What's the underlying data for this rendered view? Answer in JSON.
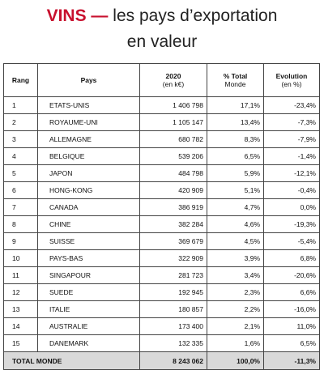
{
  "header": {
    "highlight": "VINS —",
    "title": "les pays d’exportation",
    "title_line2": "en valeur"
  },
  "table": {
    "columns": [
      {
        "label": "Rang",
        "sub": null
      },
      {
        "label": "Pays",
        "sub": null
      },
      {
        "label": "2020",
        "sub": "(en k€)"
      },
      {
        "label": "% Total",
        "sub": "Monde"
      },
      {
        "label": "Evolution",
        "sub": "(en %)"
      }
    ],
    "rows": [
      [
        "1",
        "ETATS-UNIS",
        "1 406 798",
        "17,1%",
        "-23,4%"
      ],
      [
        "2",
        "ROYAUME-UNI",
        "1 105 147",
        "13,4%",
        "-7,3%"
      ],
      [
        "3",
        "ALLEMAGNE",
        "680 782",
        "8,3%",
        "-7,9%"
      ],
      [
        "4",
        "BELGIQUE",
        "539 206",
        "6,5%",
        "-1,4%"
      ],
      [
        "5",
        "JAPON",
        "484 798",
        "5,9%",
        "-12,1%"
      ],
      [
        "6",
        "HONG-KONG",
        "420 909",
        "5,1%",
        "-0,4%"
      ],
      [
        "7",
        "CANADA",
        "386 919",
        "4,7%",
        "0,0%"
      ],
      [
        "8",
        "CHINE",
        "382 284",
        "4,6%",
        "-19,3%"
      ],
      [
        "9",
        "SUISSE",
        "369 679",
        "4,5%",
        "-5,4%"
      ],
      [
        "10",
        "PAYS-BAS",
        "322 909",
        "3,9%",
        "6,8%"
      ],
      [
        "11",
        "SINGAPOUR",
        "281 723",
        "3,4%",
        "-20,6%"
      ],
      [
        "12",
        "SUEDE",
        "192 945",
        "2,3%",
        "6,6%"
      ],
      [
        "13",
        "ITALIE",
        "180 857",
        "2,2%",
        "-16,0%"
      ],
      [
        "14",
        "AUSTRALIE",
        "173 400",
        "2,1%",
        "11,0%"
      ],
      [
        "15",
        "DANEMARK",
        "132 335",
        "1,6%",
        "6,5%"
      ]
    ],
    "total": [
      "TOTAL MONDE",
      "8 243 062",
      "100,0%",
      "-11,3%"
    ]
  }
}
